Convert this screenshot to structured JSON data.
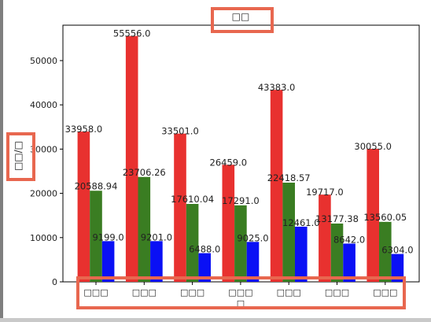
{
  "chart_data": {
    "type": "bar",
    "title": "□□",
    "xlabel": "",
    "ylabel": "□□/□",
    "categories": [
      "□□□",
      "□□□",
      "□□□",
      "□□□□",
      "□□□",
      "□□□",
      "□□□"
    ],
    "series": [
      {
        "color": "#e8312f",
        "values": [
          33958.0,
          55556.0,
          33501.0,
          26459.0,
          43383.0,
          19717.0,
          30055.0
        ],
        "labels": [
          "33958.0",
          "55556.0",
          "33501.0",
          "26459.0",
          "43383.0",
          "19717.0",
          "30055.0"
        ]
      },
      {
        "color": "#3a7d22",
        "values": [
          20588.94,
          23706.26,
          17610.04,
          17291.0,
          22418.57,
          13177.38,
          13560.05
        ],
        "labels": [
          "20588.94",
          "23706.26",
          "17610.04",
          "17291.0",
          "22418.57",
          "13177.38",
          "13560.05"
        ]
      },
      {
        "color": "#0a10f5",
        "values": [
          9199.0,
          9201.0,
          6488.0,
          9025.0,
          12461.0,
          8642.0,
          6304.0
        ],
        "labels": [
          "9199.0",
          "9201.0",
          "6488.0",
          "9025.0",
          "12461.0",
          "8642.0",
          "6304.0"
        ]
      }
    ],
    "yticks": [
      0,
      10000,
      20000,
      30000,
      40000,
      50000
    ],
    "ylim": [
      0,
      58000
    ],
    "grid": false,
    "legend": false
  }
}
